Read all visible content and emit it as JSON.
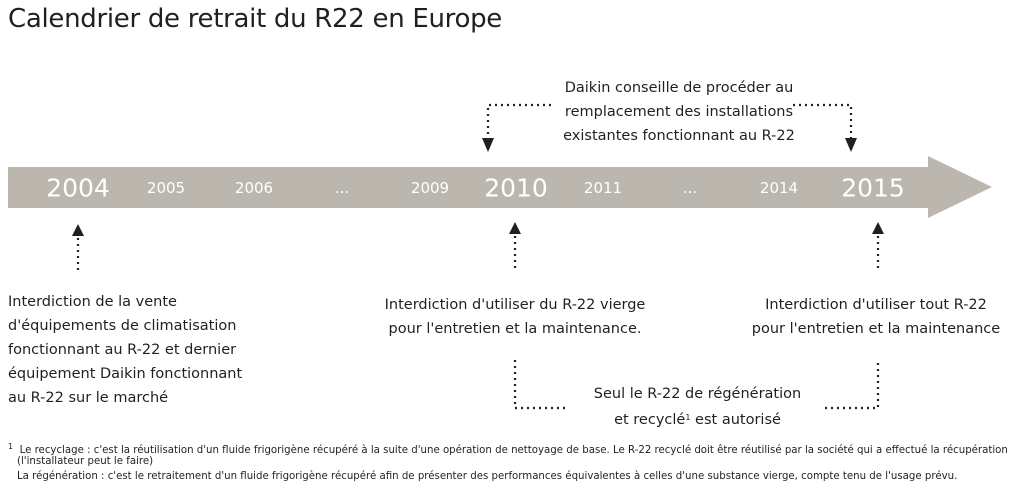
{
  "title": "Calendrier de retrait du R22 en Europe",
  "timeline": {
    "colors": {
      "arrow": "#bcb7ae",
      "year_text": "#ffffff",
      "text": "#231f20"
    },
    "years": [
      "2004",
      "2005",
      "2006",
      "...",
      "2009",
      "2010",
      "2011",
      "...",
      "2014",
      "2015"
    ],
    "highlighted_years": [
      "2004",
      "2010",
      "2015"
    ]
  },
  "callouts": {
    "daikin_advice": [
      "Daikin conseille de procéder au",
      "remplacement des installations",
      "existantes fonctionnant au R-22"
    ],
    "ban_2004": [
      "Interdiction de la vente",
      "d'équipements de climatisation",
      "fonctionnant au R-22 et dernier",
      "équipement Daikin fonctionnant",
      "au R-22 sur le marché"
    ],
    "ban_2010": [
      "Interdiction d'utiliser du R-22 vierge",
      "pour l'entretien et la maintenance."
    ],
    "ban_2015": [
      "Interdiction d'utiliser tout R-22",
      "pour l'entretien et la maintenance"
    ],
    "recycled": {
      "line1": "Seul le R-22 de régénération",
      "line2_before": "et recyclé",
      "line2_sup": "1",
      "line2_after": " est autorisé"
    }
  },
  "footnotes": {
    "marker": "1",
    "recyclage": "Le recyclage : c'est la réutilisation d'un fluide frigorigène récupéré à la suite d'une opération de nettoyage de base. Le R-22 recyclé doit être réutilisé par la société qui a effectué la récupération",
    "recyclage_cont": "(l'installateur peut le faire)",
    "regeneration": "La régénération : c'est le retraitement d'un fluide frigorigène récupéré afin de présenter des performances équivalentes à celles d'une substance vierge, compte tenu de l'usage prévu."
  }
}
